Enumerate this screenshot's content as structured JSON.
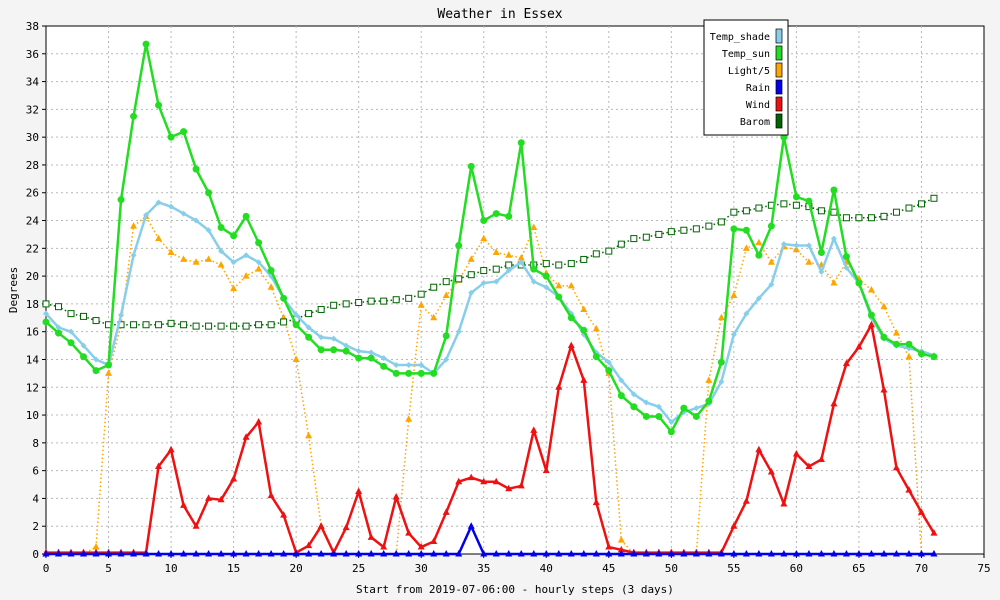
{
  "chart_data": {
    "type": "line",
    "title": "Weather in Essex",
    "xlabel": "Start from 2019-07-06:00 - hourly steps (3 days)",
    "ylabel": "Degrees",
    "xlim": [
      0,
      75
    ],
    "ylim": [
      0,
      38
    ],
    "xticks": [
      0,
      5,
      10,
      15,
      20,
      25,
      30,
      35,
      40,
      45,
      50,
      55,
      60,
      65,
      70,
      75
    ],
    "yticks": [
      0,
      2,
      4,
      6,
      8,
      10,
      12,
      14,
      16,
      18,
      20,
      22,
      24,
      26,
      28,
      30,
      32,
      34,
      36,
      38
    ],
    "grid": true,
    "legend_position": "top-right",
    "x": [
      0,
      1,
      2,
      3,
      4,
      5,
      6,
      7,
      8,
      9,
      10,
      11,
      12,
      13,
      14,
      15,
      16,
      17,
      18,
      19,
      20,
      21,
      22,
      23,
      24,
      25,
      26,
      27,
      28,
      29,
      30,
      31,
      32,
      33,
      34,
      35,
      36,
      37,
      38,
      39,
      40,
      41,
      42,
      43,
      44,
      45,
      46,
      47,
      48,
      49,
      50,
      51,
      52,
      53,
      54,
      55,
      56,
      57,
      58,
      59,
      60,
      61,
      62,
      63,
      64,
      65,
      66,
      67,
      68,
      69,
      70,
      71
    ],
    "series": [
      {
        "name": "Temp_shade",
        "color": "#87ceeb",
        "marker": "diamond",
        "style": "solid",
        "values": [
          17.3,
          16.3,
          16.0,
          15.0,
          14.0,
          13.6,
          17.2,
          21.5,
          24.4,
          25.3,
          25.0,
          24.5,
          24.0,
          23.3,
          21.8,
          21.0,
          21.5,
          21.0,
          20.0,
          18.4,
          17.2,
          16.3,
          15.6,
          15.5,
          15.0,
          14.6,
          14.5,
          14.1,
          13.6,
          13.6,
          13.6,
          13.0,
          14.0,
          16.0,
          18.8,
          19.5,
          19.6,
          20.4,
          21.0,
          19.6,
          19.2,
          18.5,
          17.3,
          15.8,
          14.5,
          13.8,
          12.5,
          11.5,
          10.9,
          10.6,
          9.5,
          10.2,
          10.5,
          10.8,
          12.4,
          15.8,
          17.3,
          18.4,
          19.4,
          22.3,
          22.2,
          22.2,
          20.3,
          22.7,
          20.6,
          19.5,
          17.0,
          15.5,
          15.0,
          14.8,
          14.6,
          14.3
        ]
      },
      {
        "name": "Temp_sun",
        "color": "#22dd22",
        "marker": "circle",
        "style": "solid",
        "values": [
          16.7,
          15.9,
          15.2,
          14.2,
          13.2,
          13.6,
          25.5,
          31.5,
          36.7,
          32.3,
          30.0,
          30.4,
          27.7,
          26.0,
          23.5,
          22.9,
          24.3,
          22.4,
          20.4,
          18.4,
          16.5,
          15.6,
          14.7,
          14.7,
          14.6,
          14.1,
          14.1,
          13.5,
          13.0,
          13.0,
          13.0,
          13.0,
          15.7,
          22.2,
          27.9,
          24.0,
          24.5,
          24.3,
          29.6,
          20.5,
          20.0,
          18.5,
          17.0,
          16.1,
          14.2,
          13.2,
          11.4,
          10.6,
          9.9,
          9.9,
          8.8,
          10.5,
          9.9,
          11.0,
          13.8,
          23.4,
          23.3,
          21.5,
          23.6,
          30.0,
          25.7,
          25.4,
          21.7,
          26.2,
          21.4,
          19.5,
          17.2,
          15.6,
          15.1,
          15.1,
          14.4,
          14.2
        ]
      },
      {
        "name": "Light/5",
        "color": "#ffa500",
        "marker": "triangle",
        "style": "dotted",
        "values": [
          0.0,
          0.0,
          0.0,
          0.0,
          0.5,
          13.0,
          16.5,
          23.6,
          24.3,
          22.7,
          21.7,
          21.2,
          21.0,
          21.2,
          20.8,
          19.1,
          20.0,
          20.5,
          19.2,
          17.0,
          14.0,
          8.5,
          2.0,
          0.0,
          0.0,
          0.0,
          0.0,
          0.0,
          0.0,
          9.7,
          17.9,
          17.0,
          18.6,
          19.7,
          21.2,
          22.7,
          21.7,
          21.5,
          21.3,
          23.5,
          20.2,
          19.3,
          19.3,
          17.6,
          16.2,
          13.0,
          1.0,
          0.0,
          0.0,
          0.0,
          0.0,
          0.0,
          0.0,
          12.5,
          17.0,
          18.6,
          22.0,
          22.4,
          21.0,
          22.1,
          21.9,
          21.0,
          20.8,
          19.5,
          21.0,
          19.8,
          19.0,
          17.8,
          15.9,
          14.2,
          0.0,
          0.0
        ]
      },
      {
        "name": "Rain",
        "color": "#0000ee",
        "marker": "triangle",
        "style": "solid",
        "values": [
          0,
          0,
          0,
          0,
          0,
          0,
          0,
          0,
          0,
          0,
          0,
          0,
          0,
          0,
          0,
          0,
          0,
          0,
          0,
          0,
          0,
          0,
          0,
          0,
          0,
          0,
          0,
          0,
          0,
          0,
          0,
          0,
          0,
          0,
          2.0,
          0,
          0,
          0,
          0,
          0,
          0,
          0,
          0,
          0,
          0,
          0,
          0,
          0,
          0,
          0,
          0,
          0,
          0,
          0,
          0,
          0,
          0,
          0,
          0,
          0,
          0,
          0,
          0,
          0,
          0,
          0,
          0,
          0,
          0,
          0,
          0,
          0
        ]
      },
      {
        "name": "Wind",
        "color": "#ee1111",
        "marker": "triangle",
        "style": "solid",
        "values": [
          0.1,
          0.1,
          0.1,
          0.1,
          0.1,
          0.1,
          0.1,
          0.1,
          0.1,
          6.3,
          7.5,
          3.5,
          2.0,
          4.0,
          3.9,
          5.4,
          8.4,
          9.5,
          4.2,
          2.8,
          0.1,
          0.6,
          2.0,
          0.1,
          1.9,
          4.5,
          1.2,
          0.5,
          4.1,
          1.5,
          0.5,
          0.9,
          3.0,
          5.2,
          5.5,
          5.2,
          5.2,
          4.7,
          4.9,
          8.9,
          6.0,
          12.0,
          15.0,
          12.5,
          3.7,
          0.5,
          0.3,
          0.1,
          0.1,
          0.1,
          0.1,
          0.1,
          0.1,
          0.1,
          0.1,
          2.0,
          3.8,
          7.5,
          5.9,
          3.6,
          7.2,
          6.3,
          6.8,
          10.8,
          13.7,
          14.9,
          16.5,
          11.8,
          6.2,
          4.6,
          3.0,
          1.5
        ]
      },
      {
        "name": "Barom",
        "color": "#006400",
        "marker": "square",
        "style": "dotted",
        "values": [
          18.0,
          17.8,
          17.3,
          17.1,
          16.8,
          16.5,
          16.5,
          16.5,
          16.5,
          16.5,
          16.6,
          16.5,
          16.4,
          16.4,
          16.4,
          16.4,
          16.4,
          16.5,
          16.5,
          16.7,
          16.9,
          17.3,
          17.6,
          17.9,
          18.0,
          18.1,
          18.2,
          18.2,
          18.3,
          18.4,
          18.7,
          19.2,
          19.6,
          19.8,
          20.1,
          20.4,
          20.5,
          20.8,
          20.8,
          20.8,
          20.9,
          20.8,
          20.9,
          21.2,
          21.6,
          21.8,
          22.3,
          22.7,
          22.8,
          23.0,
          23.2,
          23.3,
          23.4,
          23.6,
          23.9,
          24.6,
          24.7,
          24.9,
          25.1,
          25.2,
          25.1,
          25.0,
          24.7,
          24.6,
          24.2,
          24.2,
          24.2,
          24.3,
          24.6,
          24.9,
          25.2,
          25.6
        ]
      }
    ]
  }
}
